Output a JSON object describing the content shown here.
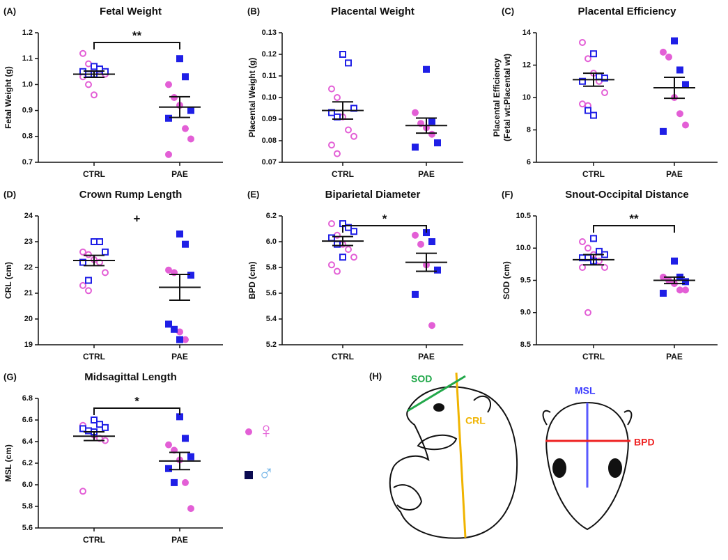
{
  "chart_data": [
    {
      "type": "dot",
      "panel": "(A)",
      "title": "Fetal Weight",
      "y_label": "Fetal Weight (g)",
      "categories": [
        "CTRL",
        "PAE"
      ],
      "ylim": [
        0.7,
        1.2
      ],
      "yticks": [
        0.7,
        0.8,
        0.9,
        {
          "value": 1.0,
          "label": "1.0"
        },
        1.1,
        1.2
      ],
      "hollow": [
        true,
        false
      ],
      "series": [
        {
          "name": "♀",
          "marker": "circle",
          "color": "#e35fd6",
          "values": [
            [
              1.12,
              1.08,
              1.06,
              1.05,
              1.04,
              1.03,
              1.0,
              0.96
            ],
            [
              1.0,
              0.95,
              0.92,
              0.83,
              0.79,
              0.73
            ]
          ]
        },
        {
          "name": "♂",
          "marker": "square",
          "color": "#1f1fe6",
          "values": [
            [
              1.07,
              1.06,
              1.05,
              1.05,
              1.04,
              1.04
            ],
            [
              1.1,
              1.03,
              0.9,
              0.87
            ]
          ]
        }
      ],
      "mean": [
        1.04,
        0.913
      ],
      "sem": [
        0.012,
        0.04
      ],
      "annotation": "**",
      "bracket": true
    },
    {
      "type": "dot",
      "panel": "(B)",
      "title": "Placental Weight",
      "y_label": "Placental Weight (g)",
      "categories": [
        "CTRL",
        "PAE"
      ],
      "ylim": [
        0.07,
        0.13
      ],
      "yticks": [
        0.07,
        0.08,
        0.09,
        {
          "value": 0.1,
          "label": "0.10"
        },
        0.11,
        0.12,
        0.13
      ],
      "hollow": [
        true,
        false
      ],
      "series": [
        {
          "name": "♀",
          "marker": "circle",
          "color": "#e35fd6",
          "values": [
            [
              0.104,
              0.1,
              0.091,
              0.085,
              0.082,
              0.078,
              0.074
            ],
            [
              0.093,
              0.088,
              0.086,
              0.083,
              0.079
            ]
          ]
        },
        {
          "name": "♂",
          "marker": "square",
          "color": "#1f1fe6",
          "values": [
            [
              0.12,
              0.116,
              0.095,
              0.093,
              0.091
            ],
            [
              0.113,
              0.089,
              0.079,
              0.077
            ]
          ]
        }
      ],
      "mean": [
        0.094,
        0.087
      ],
      "sem": [
        0.004,
        0.0035
      ]
    },
    {
      "type": "dot",
      "panel": "(C)",
      "title": "Placental Efficiency",
      "y_label": [
        "Placental Efficiency",
        "(Fetal wt:Placental wt)"
      ],
      "categories": [
        "CTRL",
        "PAE"
      ],
      "ylim": [
        6,
        14
      ],
      "yticks": [
        6,
        8,
        10,
        12,
        14
      ],
      "hollow": [
        true,
        false
      ],
      "series": [
        {
          "name": "♀",
          "marker": "circle",
          "color": "#e35fd6",
          "values": [
            [
              13.4,
              12.4,
              11.5,
              11.0,
              10.3,
              9.6,
              9.5
            ],
            [
              12.8,
              12.5,
              10.0,
              9.0,
              8.3
            ]
          ]
        },
        {
          "name": "♂",
          "marker": "square",
          "color": "#1f1fe6",
          "values": [
            [
              12.7,
              11.3,
              11.2,
              11.0,
              9.2,
              8.9
            ],
            [
              13.5,
              11.7,
              10.8,
              7.9
            ]
          ]
        }
      ],
      "mean": [
        11.1,
        10.6
      ],
      "sem": [
        0.4,
        0.65
      ]
    },
    {
      "type": "dot",
      "panel": "(D)",
      "title": "Crown Rump Length",
      "y_label": "CRL (cm)",
      "categories": [
        "CTRL",
        "PAE"
      ],
      "ylim": [
        19,
        24
      ],
      "yticks": [
        19,
        20,
        21,
        22,
        23,
        24
      ],
      "hollow": [
        true,
        false
      ],
      "series": [
        {
          "name": "♀",
          "marker": "circle",
          "color": "#e35fd6",
          "values": [
            [
              22.6,
              22.5,
              22.3,
              22.2,
              21.8,
              21.3,
              21.1
            ],
            [
              21.9,
              21.8,
              19.5,
              19.2
            ]
          ]
        },
        {
          "name": "♂",
          "marker": "square",
          "color": "#1f1fe6",
          "values": [
            [
              23.0,
              23.0,
              22.6,
              22.2,
              21.5
            ],
            [
              23.3,
              22.9,
              21.7,
              19.8,
              19.6,
              19.2
            ]
          ]
        }
      ],
      "mean": [
        22.27,
        21.23
      ],
      "sem": [
        0.2,
        0.5
      ],
      "annotation": "+",
      "bracket": false
    },
    {
      "type": "dot",
      "panel": "(E)",
      "title": "Biparietal Diameter",
      "y_label": "BPD (cm)",
      "categories": [
        "CTRL",
        "PAE"
      ],
      "ylim": [
        5.2,
        6.2
      ],
      "yticks": [
        5.2,
        5.4,
        5.6,
        5.8,
        {
          "value": 6.0,
          "label": "6.0"
        },
        6.2
      ],
      "hollow": [
        true,
        false
      ],
      "series": [
        {
          "name": "♀",
          "marker": "circle",
          "color": "#e35fd6",
          "values": [
            [
              6.14,
              6.05,
              5.98,
              5.94,
              5.88,
              5.82,
              5.77
            ],
            [
              6.05,
              5.98,
              5.82,
              5.35
            ]
          ]
        },
        {
          "name": "♂",
          "marker": "square",
          "color": "#1f1fe6",
          "values": [
            [
              6.14,
              6.11,
              6.08,
              6.03,
              5.98,
              5.88
            ],
            [
              6.07,
              6.0,
              5.78,
              5.59
            ]
          ]
        }
      ],
      "mean": [
        6.005,
        5.84
      ],
      "sem": [
        0.035,
        0.07
      ],
      "annotation": "*",
      "bracket": true
    },
    {
      "type": "dot",
      "panel": "(F)",
      "title": "Snout-Occipital Distance",
      "y_label": "SOD (cm)",
      "categories": [
        "CTRL",
        "PAE"
      ],
      "ylim": [
        8.5,
        10.5
      ],
      "yticks": [
        8.5,
        {
          "value": 9.0,
          "label": "9.0"
        },
        9.5,
        {
          "value": 10.0,
          "label": "10.0"
        },
        10.5
      ],
      "hollow": [
        true,
        false
      ],
      "series": [
        {
          "name": "♀",
          "marker": "circle",
          "color": "#e35fd6",
          "values": [
            [
              10.1,
              10.0,
              9.9,
              9.8,
              9.7,
              9.7,
              9.0
            ],
            [
              9.55,
              9.5,
              9.45,
              9.35,
              9.35
            ]
          ]
        },
        {
          "name": "♂",
          "marker": "square",
          "color": "#1f1fe6",
          "values": [
            [
              10.15,
              9.95,
              9.9,
              9.85,
              9.85,
              9.8
            ],
            [
              9.8,
              9.55,
              9.48,
              9.3
            ]
          ]
        }
      ],
      "mean": [
        9.82,
        9.5
      ],
      "sem": [
        0.08,
        0.05
      ],
      "annotation": "**",
      "bracket": true
    },
    {
      "type": "dot",
      "panel": "(G)",
      "title": "Midsagittal Length",
      "y_label": "MSL (cm)",
      "categories": [
        "CTRL",
        "PAE"
      ],
      "ylim": [
        5.6,
        6.8
      ],
      "yticks": [
        5.6,
        5.8,
        {
          "value": 6.0,
          "label": "6.0"
        },
        6.2,
        6.4,
        6.6,
        6.8
      ],
      "hollow": [
        true,
        false
      ],
      "series": [
        {
          "name": "♀",
          "marker": "circle",
          "color": "#e35fd6",
          "values": [
            [
              6.55,
              6.5,
              6.46,
              6.43,
              6.41,
              5.94
            ],
            [
              6.37,
              6.32,
              6.23,
              6.02,
              5.78
            ]
          ]
        },
        {
          "name": "♂",
          "marker": "square",
          "color": "#1f1fe6",
          "values": [
            [
              6.6,
              6.56,
              6.53,
              6.52,
              6.5,
              6.49
            ],
            [
              6.63,
              6.43,
              6.26,
              6.15,
              6.02
            ]
          ]
        }
      ],
      "mean": [
        6.45,
        6.22
      ],
      "sem": [
        0.04,
        0.08
      ],
      "annotation": "*",
      "bracket": true
    }
  ],
  "diagram": {
    "panel": "(H)",
    "labels": [
      "SOD",
      "CRL",
      "MSL",
      "BPD"
    ]
  }
}
